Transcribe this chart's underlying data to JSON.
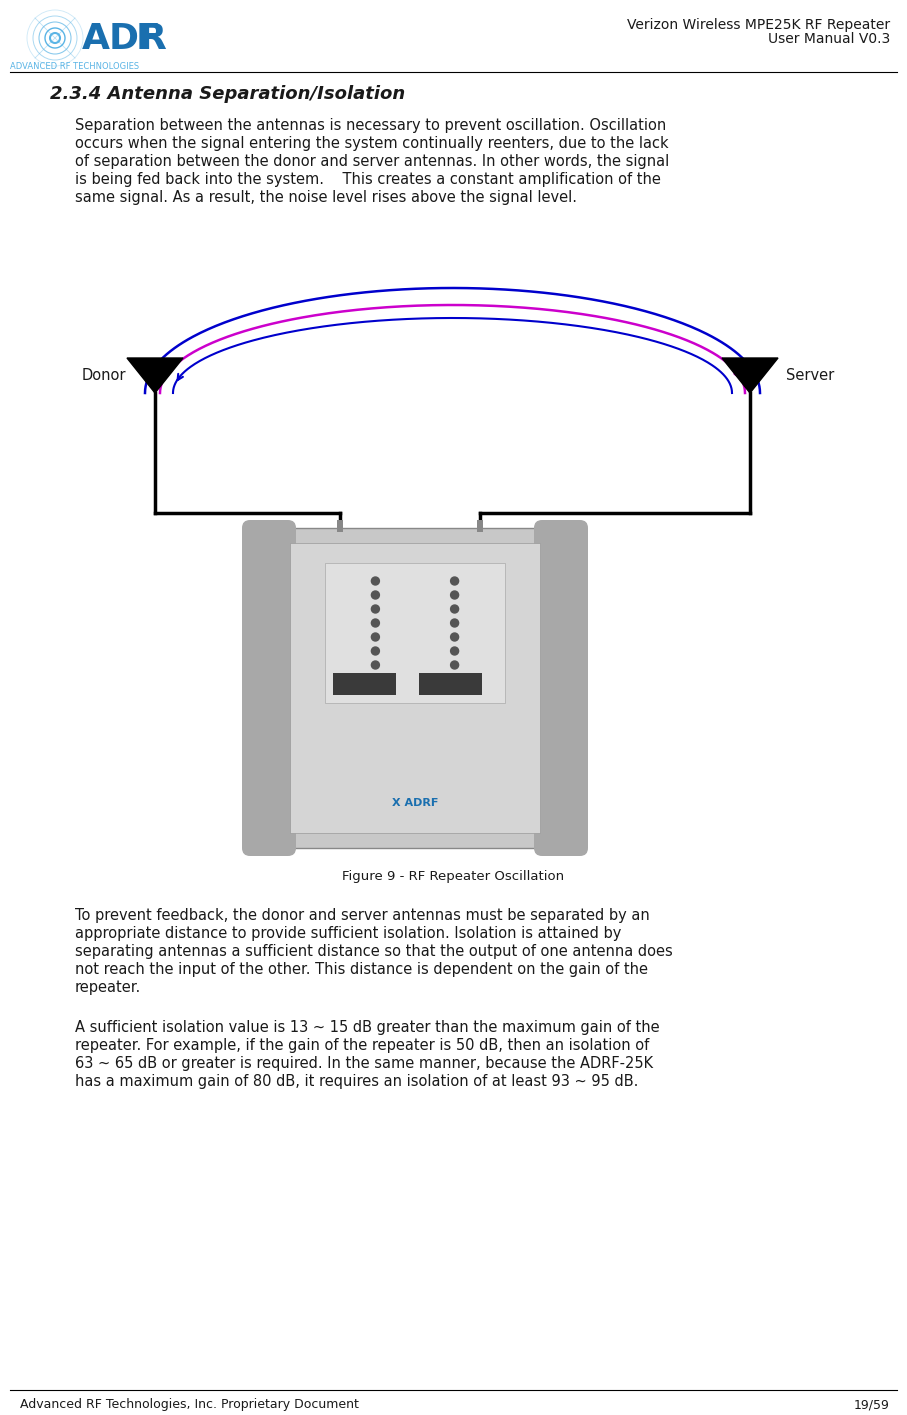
{
  "page_width": 9.07,
  "page_height": 14.15,
  "bg_color": "#ffffff",
  "header_title_line1": "Verizon Wireless MPE25K RF Repeater",
  "header_title_line2": "User Manual V0.3",
  "footer_left": "Advanced RF Technologies, Inc. Proprietary Document",
  "footer_right": "19/59",
  "section_title": "2.3.4 Antenna Separation/Isolation",
  "para1_lines": [
    "Separation between the antennas is necessary to prevent oscillation. Oscillation",
    "occurs when the signal entering the system continually reenters, due to the lack",
    "of separation between the donor and server antennas. In other words, the signal",
    "is being fed back into the system.    This creates a constant amplification of the",
    "same signal. As a result, the noise level rises above the signal level."
  ],
  "para2_lines": [
    "To prevent feedback, the donor and server antennas must be separated by an",
    "appropriate distance to provide sufficient isolation. Isolation is attained by",
    "separating antennas a sufficient distance so that the output of one antenna does",
    "not reach the input of the other. This distance is dependent on the gain of the",
    "repeater."
  ],
  "para3_lines": [
    "A sufficient isolation value is 13 ~ 15 dB greater than the maximum gain of the",
    "repeater. For example, if the gain of the repeater is 50 dB, then an isolation of",
    "63 ~ 65 dB or greater is required. In the same manner, because the ADRF-25K",
    "has a maximum gain of 80 dB, it requires an isolation of at least 93 ~ 95 dB."
  ],
  "figure_caption": "Figure 9 - RF Repeater Oscillation",
  "adrf_blue": "#1a6faf",
  "adrf_light_blue": "#5ab4e5",
  "text_color": "#1a1a1a",
  "magenta_color": "#cc00cc",
  "blue_color": "#0000cc"
}
